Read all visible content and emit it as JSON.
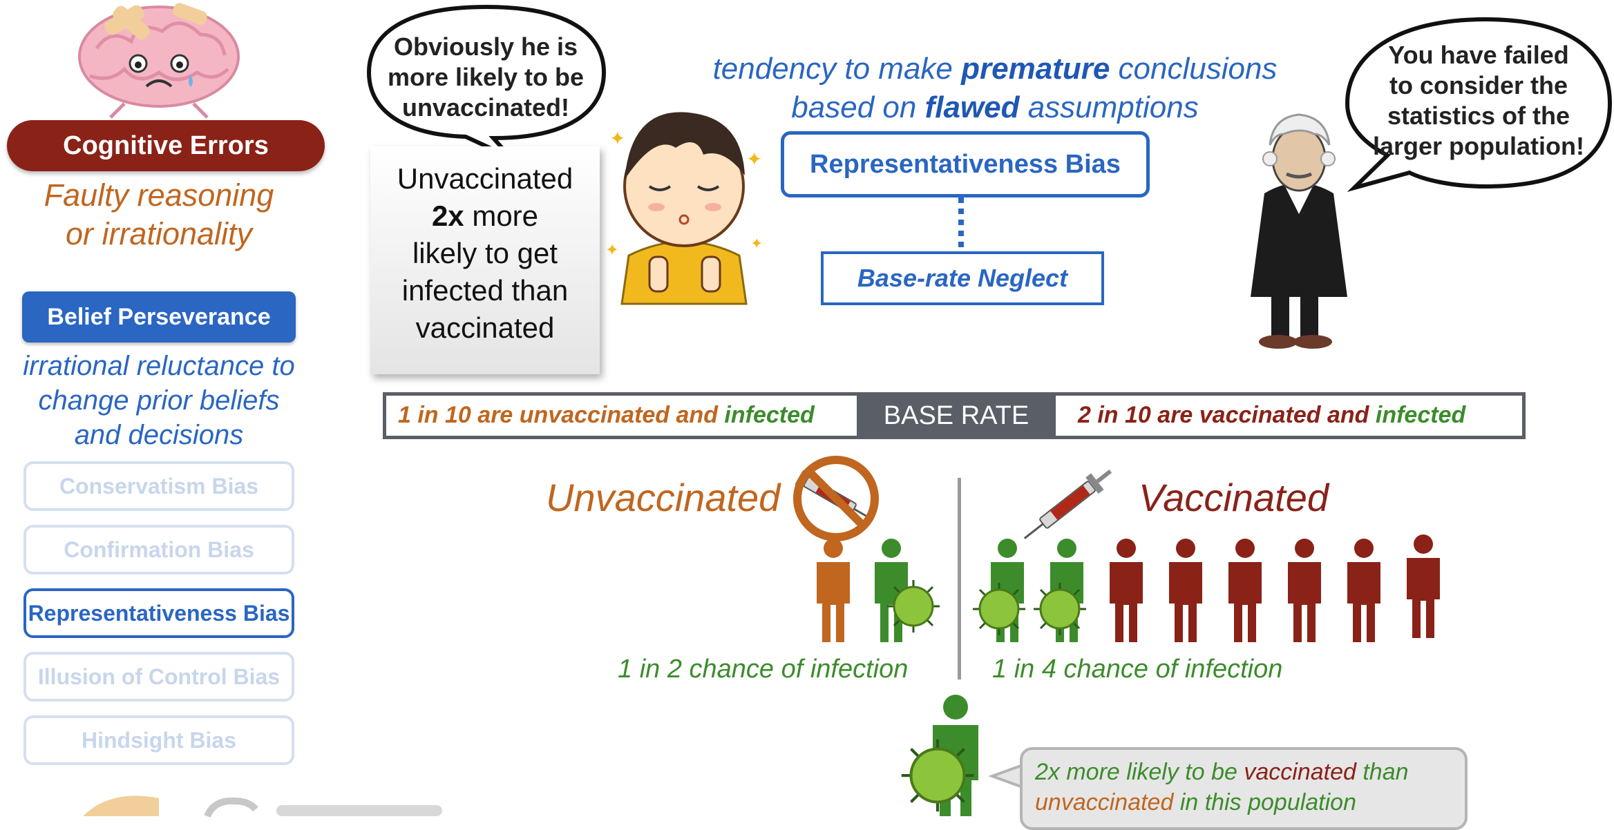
{
  "left_panel": {
    "title": "Cognitive Errors",
    "subtitle_line1": "Faulty reasoning",
    "subtitle_line2": "or irrationality",
    "category": "Belief Perseverance",
    "category_desc_line1": "irrational reluctance to",
    "category_desc_line2": "change prior beliefs",
    "category_desc_line3": "and decisions",
    "biases": [
      {
        "label": "Conservatism Bias",
        "active": false
      },
      {
        "label": "Confirmation Bias",
        "active": false
      },
      {
        "label": "Representativeness Bias",
        "active": true
      },
      {
        "label": "Illusion of Control Bias",
        "active": false
      },
      {
        "label": "Hindsight Bias",
        "active": false
      }
    ]
  },
  "kid_bubble": {
    "line1": "Obviously he is",
    "line2": "more likely to be",
    "line3": "unvaccinated!"
  },
  "stat_card": {
    "line1": "Unvaccinated",
    "strong": "2x",
    "line2_rest": " more",
    "line3": "likely to get",
    "line4": "infected than",
    "line5": "vaccinated"
  },
  "tendency": {
    "part1": "tendency to make ",
    "bold1": "premature",
    "part2": " conclusions",
    "part3": "based on ",
    "bold2": "flawed",
    "part4": " assumptions"
  },
  "rep_bias_box": "Representativeness Bias",
  "base_rate_neglect_box": "Base-rate Neglect",
  "judge_bubble": {
    "line1": "You have failed",
    "line2": "to consider the",
    "line3": "statistics of the",
    "line4": "larger population!"
  },
  "base_rate_bar": {
    "left_main": "1 in 10 are unvaccinated and ",
    "left_infected": "infected",
    "center": "BASE RATE",
    "right_main": "2 in 10 are vaccinated and ",
    "right_infected": "infected"
  },
  "groups": {
    "unvaccinated_label": "Unvaccinated",
    "vaccinated_label": "Vaccinated",
    "unvaccinated_chance": "1 in 2 chance of infection",
    "vaccinated_chance": "1 in 4 chance of infection"
  },
  "note": {
    "p1": "2x more likely to be ",
    "p2": "vaccinated",
    "p3": " than",
    "p4": "unvaccinated",
    "p5": " in this population"
  },
  "colors": {
    "dark_red": "#8a2218",
    "orange": "#c0661f",
    "green": "#3c8c2c",
    "blue": "#2a66c2",
    "gray": "#5a5e66"
  }
}
